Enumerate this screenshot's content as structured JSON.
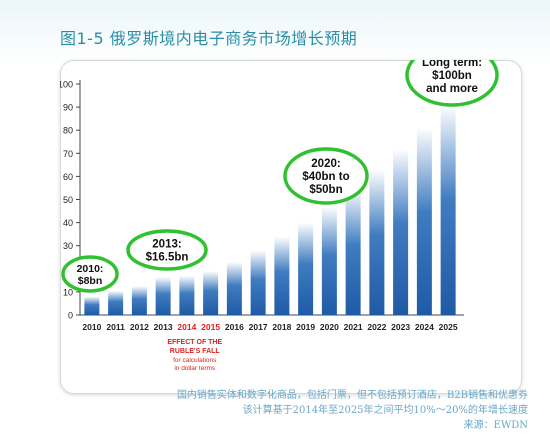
{
  "figure": {
    "number": "图1-5",
    "title": "俄罗斯境内电子商务市场增长预期"
  },
  "chart_data": {
    "type": "bar",
    "categories": [
      "2010",
      "2011",
      "2012",
      "2013",
      "2014",
      "2015",
      "2016",
      "2017",
      "2018",
      "2019",
      "2020",
      "2021",
      "2022",
      "2023",
      "2024",
      "2025"
    ],
    "values": [
      8,
      10.5,
      12.5,
      16.5,
      17,
      19,
      23,
      28,
      34,
      40,
      47,
      55,
      63,
      72,
      81,
      91
    ],
    "ylim": [
      0,
      100
    ],
    "yticks": [
      0,
      10,
      20,
      30,
      40,
      50,
      60,
      70,
      80,
      90,
      100
    ],
    "highlight_categories": [
      "2014",
      "2015"
    ],
    "highlight_color": "#e02020",
    "bar_color": "#1f5aa6",
    "callout_ring_color": "#2fc12f",
    "callouts": [
      {
        "category": "2010",
        "lines": [
          "2010:",
          "$8bn"
        ]
      },
      {
        "category": "2013",
        "lines": [
          "2013:",
          "$16.5bn"
        ]
      },
      {
        "category": "2020",
        "lines": [
          "2020:",
          "$40bn to",
          "$50bn"
        ]
      },
      {
        "category": "2025",
        "lines": [
          "Long term:",
          "$100bn",
          "and more"
        ]
      }
    ],
    "annotation": {
      "heading": [
        "EFFECT OF THE",
        "RUBLE'S FALL"
      ],
      "sub": [
        "for calculations",
        "in dollar terms"
      ]
    }
  },
  "notes": [
    "国内销售实体和数字化商品，包括门票，但不包括预订酒店，B2B销售和优惠券",
    "该计算基于2014年至2025年之间平均10%～20%的年增长速度",
    "来源：EWDN"
  ]
}
